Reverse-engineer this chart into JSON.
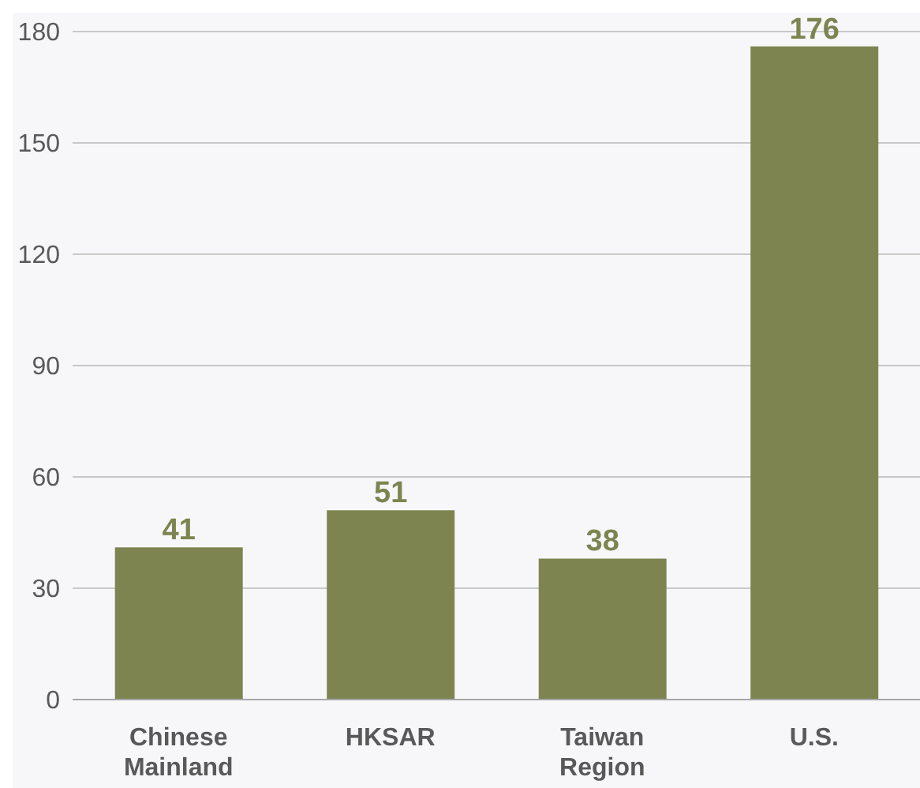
{
  "chart_data": {
    "type": "bar",
    "categories": [
      "Chinese Mainland",
      "HKSAR",
      "Taiwan Region",
      "U.S."
    ],
    "values": [
      41,
      51,
      38,
      176
    ],
    "color": "#7d8450",
    "ylim": [
      0,
      180
    ],
    "yticks": [
      0,
      30,
      60,
      90,
      120,
      150,
      180
    ],
    "grid": "y",
    "data_labels": true
  }
}
